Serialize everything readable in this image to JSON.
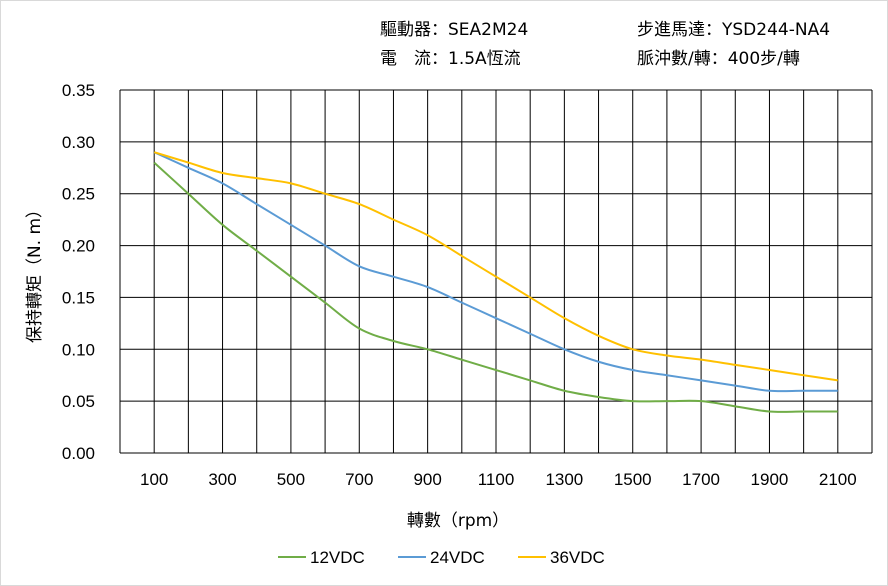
{
  "header": {
    "driver": "驅動器：SEA2M24",
    "motor": "步進馬達：YSD244-NA4",
    "current": "電　流：1.5A恆流",
    "pulse": "脈沖數/轉：400步/轉"
  },
  "chart_data": {
    "type": "line",
    "title": "",
    "xlabel": "轉數（rpm）",
    "ylabel": "保持轉矩（N. m）",
    "xlim": [
      0,
      2200
    ],
    "ylim": [
      0,
      0.35
    ],
    "x_ticks": [
      "100",
      "300",
      "500",
      "700",
      "900",
      "1100",
      "1300",
      "1500",
      "1700",
      "1900",
      "2100"
    ],
    "y_ticks": [
      "0.00",
      "0.05",
      "0.10",
      "0.15",
      "0.20",
      "0.25",
      "0.30",
      "0.35"
    ],
    "grid": true,
    "legend_position": "bottom",
    "x": [
      100,
      200,
      300,
      400,
      500,
      600,
      700,
      800,
      900,
      1000,
      1100,
      1200,
      1300,
      1400,
      1500,
      1600,
      1700,
      1800,
      1900,
      2000,
      2100
    ],
    "series": [
      {
        "name": "12VDC",
        "color": "#70ad47",
        "values": [
          0.28,
          0.25,
          0.22,
          0.195,
          0.17,
          0.145,
          0.12,
          0.108,
          0.1,
          0.09,
          0.08,
          0.07,
          0.06,
          0.054,
          0.05,
          0.05,
          0.05,
          0.045,
          0.04,
          0.04,
          0.04
        ]
      },
      {
        "name": "24VDC",
        "color": "#5b9bd5",
        "values": [
          0.29,
          0.275,
          0.26,
          0.24,
          0.22,
          0.2,
          0.18,
          0.17,
          0.16,
          0.145,
          0.13,
          0.115,
          0.1,
          0.088,
          0.08,
          0.075,
          0.07,
          0.065,
          0.06,
          0.06,
          0.06
        ]
      },
      {
        "name": "36VDC",
        "color": "#ffc000",
        "values": [
          0.29,
          0.28,
          0.27,
          0.265,
          0.26,
          0.25,
          0.24,
          0.225,
          0.21,
          0.19,
          0.17,
          0.15,
          0.13,
          0.113,
          0.1,
          0.094,
          0.09,
          0.085,
          0.08,
          0.075,
          0.07
        ]
      }
    ]
  }
}
